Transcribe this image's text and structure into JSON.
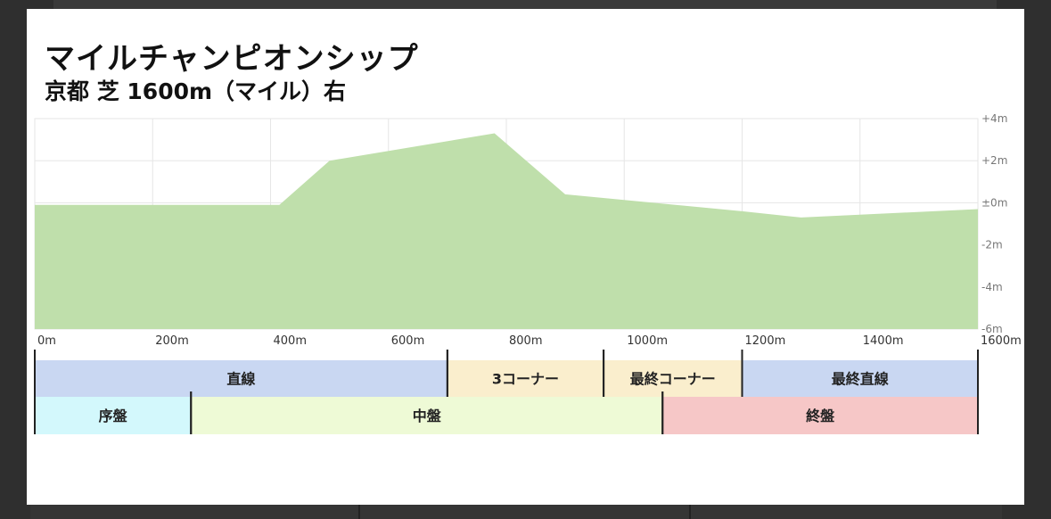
{
  "header": {
    "title": "マイルチャンピオンシップ",
    "subtitle": "京都 芝 1600m（マイル）右"
  },
  "chart_data": {
    "type": "area",
    "x": [
      0,
      200,
      415,
      500,
      780,
      900,
      1200,
      1300,
      1600
    ],
    "y": [
      -0.1,
      -0.1,
      -0.1,
      2.0,
      3.3,
      0.4,
      -0.4,
      -0.7,
      -0.3
    ],
    "xlim": [
      0,
      1600
    ],
    "ylim": [
      -6,
      4
    ],
    "xticks": [
      "0m",
      "200m",
      "400m",
      "600m",
      "800m",
      "1000m",
      "1200m",
      "1400m",
      "1600m"
    ],
    "yticks": [
      "+4m",
      "+2m",
      "±0m",
      "-2m",
      "-4m",
      "-6m"
    ],
    "ytick_values": [
      4,
      2,
      0,
      -2,
      -4,
      -6
    ],
    "grid": true,
    "fill_color": "#bfdfab",
    "segments": {
      "course": [
        {
          "label": "直線",
          "start": 0,
          "end": 700,
          "color": "#c9d7f2"
        },
        {
          "label": "3コーナー",
          "start": 700,
          "end": 965,
          "color": "#faeecd"
        },
        {
          "label": "最終コーナー",
          "start": 965,
          "end": 1200,
          "color": "#faeecd"
        },
        {
          "label": "最終直線",
          "start": 1200,
          "end": 1600,
          "color": "#c9d7f2"
        }
      ],
      "phase": [
        {
          "label": "序盤",
          "start": 0,
          "end": 265,
          "color": "#d3f8fc"
        },
        {
          "label": "中盤",
          "start": 265,
          "end": 1065,
          "color": "#eefad6"
        },
        {
          "label": "終盤",
          "start": 1065,
          "end": 1600,
          "color": "#f6c7c7"
        }
      ]
    }
  }
}
